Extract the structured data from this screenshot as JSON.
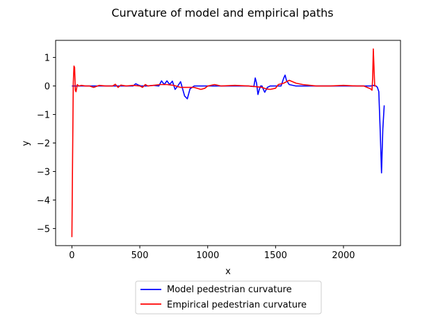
{
  "chart_data": {
    "type": "line",
    "title": "Curvature of model and empirical paths",
    "xlabel": "x",
    "ylabel": "y",
    "xlim": [
      -120,
      2420
    ],
    "ylim": [
      -5.6,
      1.6
    ],
    "xticks": [
      0,
      500,
      1000,
      1500,
      2000
    ],
    "yticks": [
      1,
      0,
      -1,
      -2,
      -3,
      -4,
      -5
    ],
    "xtick_labels": [
      "0",
      "500",
      "1000",
      "1500",
      "2000"
    ],
    "ytick_labels": [
      "1",
      "0",
      "−1",
      "−2",
      "−3",
      "−4",
      "−5"
    ],
    "grid": false,
    "legend_position": "below plot, centered",
    "series": [
      {
        "name": "Model pedestrian curvature",
        "color": "#0000ff",
        "x": [
          0,
          20,
          40,
          100,
          200,
          300,
          400,
          450,
          470,
          490,
          510,
          550,
          600,
          640,
          660,
          680,
          700,
          720,
          740,
          760,
          780,
          800,
          830,
          850,
          870,
          900,
          950,
          1000,
          1100,
          1200,
          1300,
          1340,
          1350,
          1360,
          1370,
          1380,
          1390,
          1400,
          1410,
          1420,
          1440,
          1460,
          1500,
          1540,
          1560,
          1570,
          1580,
          1600,
          1650,
          1700,
          1800,
          1900,
          2000,
          2100,
          2200,
          2220,
          2240,
          2250,
          2260,
          2270,
          2280,
          2290,
          2300
        ],
        "y": [
          0.0,
          0.0,
          0.0,
          0.0,
          0.0,
          0.0,
          0.0,
          0.0,
          0.08,
          0.03,
          0.0,
          0.0,
          0.02,
          0.0,
          0.18,
          0.05,
          0.18,
          0.05,
          0.17,
          -0.12,
          0.0,
          0.15,
          -0.35,
          -0.45,
          -0.1,
          0.0,
          0.0,
          0.0,
          0.0,
          0.0,
          0.0,
          -0.02,
          0.28,
          0.1,
          -0.3,
          -0.12,
          0.0,
          0.0,
          -0.12,
          -0.22,
          -0.05,
          0.0,
          0.0,
          0.0,
          0.28,
          0.38,
          0.2,
          0.05,
          0.0,
          0.0,
          0.0,
          0.0,
          0.0,
          0.0,
          0.0,
          0.02,
          0.0,
          -0.05,
          -0.2,
          -1.5,
          -3.05,
          -1.5,
          -0.68
        ]
      },
      {
        "name": "Empirical pedestrian curvature",
        "color": "#ff0000",
        "x": [
          0,
          5,
          10,
          15,
          20,
          25,
          30,
          40,
          50,
          70,
          100,
          130,
          160,
          200,
          250,
          300,
          320,
          340,
          360,
          400,
          450,
          500,
          520,
          540,
          560,
          600,
          650,
          700,
          750,
          800,
          900,
          950,
          980,
          1000,
          1050,
          1100,
          1200,
          1300,
          1350,
          1400,
          1430,
          1460,
          1500,
          1520,
          1560,
          1580,
          1600,
          1650,
          1700,
          1800,
          1900,
          2000,
          2100,
          2150,
          2200,
          2210,
          2215,
          2220,
          2230,
          2235,
          2240
        ],
        "y": [
          -5.3,
          -2.5,
          0.1,
          0.7,
          0.65,
          -0.15,
          -0.2,
          0.05,
          0.0,
          0.02,
          0.0,
          0.0,
          -0.05,
          0.02,
          0.0,
          0.0,
          0.06,
          -0.05,
          0.03,
          0.0,
          0.02,
          0.0,
          -0.05,
          0.05,
          0.0,
          0.02,
          0.05,
          0.05,
          0.02,
          -0.05,
          -0.05,
          -0.12,
          -0.08,
          0.0,
          0.05,
          0.0,
          0.02,
          0.0,
          -0.02,
          -0.05,
          -0.1,
          -0.12,
          -0.08,
          0.05,
          0.1,
          0.15,
          0.2,
          0.1,
          0.05,
          0.0,
          0.0,
          0.02,
          0.0,
          0.0,
          -0.1,
          -0.15,
          0.3,
          1.3,
          0.0,
          0.0,
          0.0
        ]
      }
    ]
  }
}
